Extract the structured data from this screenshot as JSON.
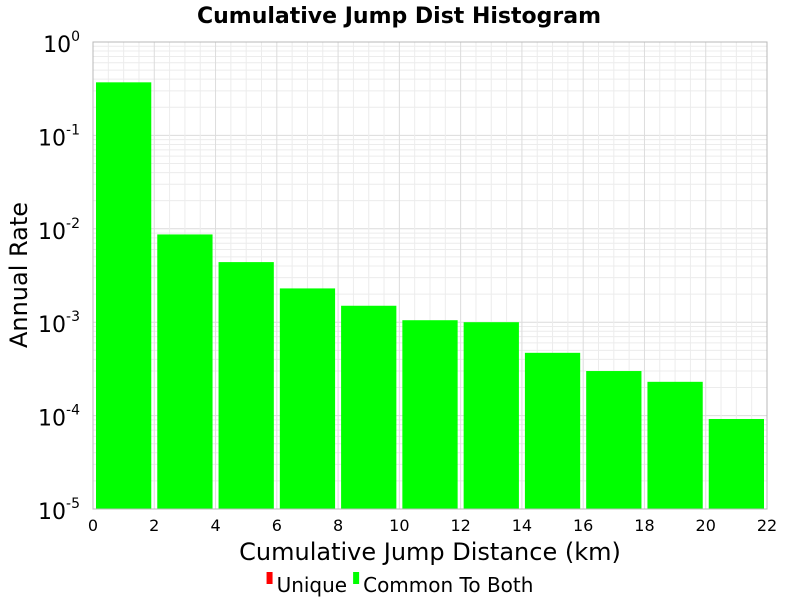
{
  "chart_data": {
    "type": "bar",
    "title": "Cumulative Jump Dist Histogram",
    "xlabel": "Cumulative Jump Distance (km)",
    "ylabel": "Annual Rate",
    "yscale": "log",
    "xlim": [
      0,
      22
    ],
    "ylim": [
      1e-05,
      1
    ],
    "x_ticks": [
      "0",
      "2",
      "4",
      "6",
      "8",
      "10",
      "12",
      "14",
      "16",
      "18",
      "20",
      "22"
    ],
    "y_ticks": [
      {
        "base": "10",
        "exp": "0"
      },
      {
        "base": "10",
        "exp": "-1"
      },
      {
        "base": "10",
        "exp": "-2"
      },
      {
        "base": "10",
        "exp": "-3"
      },
      {
        "base": "10",
        "exp": "-4"
      },
      {
        "base": "10",
        "exp": "-5"
      }
    ],
    "grid": true,
    "legend_position": "bottom",
    "series": [
      {
        "name": "Unique",
        "color": "#ff0000",
        "bins": []
      },
      {
        "name": "Common To Both",
        "color": "#00ff00",
        "bins": [
          {
            "x0": 0,
            "x1": 2,
            "value": 0.37
          },
          {
            "x0": 2,
            "x1": 4,
            "value": 0.0087
          },
          {
            "x0": 4,
            "x1": 6,
            "value": 0.0044
          },
          {
            "x0": 6,
            "x1": 8,
            "value": 0.0023
          },
          {
            "x0": 8,
            "x1": 10,
            "value": 0.0015
          },
          {
            "x0": 10,
            "x1": 12,
            "value": 0.00105
          },
          {
            "x0": 12,
            "x1": 14,
            "value": 0.001
          },
          {
            "x0": 14,
            "x1": 16,
            "value": 0.00047
          },
          {
            "x0": 16,
            "x1": 18,
            "value": 0.0003
          },
          {
            "x0": 18,
            "x1": 20,
            "value": 0.00023
          },
          {
            "x0": 20,
            "x1": 22,
            "value": 9.2e-05
          }
        ]
      }
    ]
  }
}
